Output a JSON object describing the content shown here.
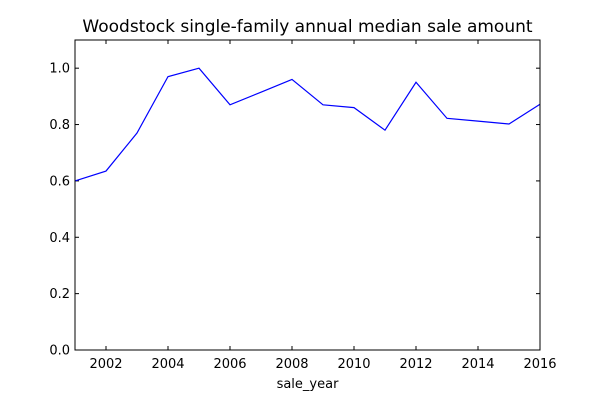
{
  "chart_data": {
    "type": "line",
    "title": "Woodstock single-family annual median sale amount",
    "xlabel": "sale_year",
    "ylabel": "",
    "xlim": [
      2001,
      2016
    ],
    "ylim": [
      0.0,
      1.1
    ],
    "grid": false,
    "legend": "none",
    "xticks": [
      "2002",
      "2004",
      "2006",
      "2008",
      "2010",
      "2012",
      "2014",
      "2016"
    ],
    "yticks": [
      "0.0",
      "0.2",
      "0.4",
      "0.6",
      "0.8",
      "1.0"
    ],
    "series": [
      {
        "color": "#0000ff",
        "x": [
          2001,
          2002,
          2003,
          2004,
          2005,
          2006,
          2007,
          2008,
          2009,
          2010,
          2011,
          2012,
          2013,
          2014,
          2015,
          2016
        ],
        "y": [
          0.6,
          0.635,
          0.77,
          0.97,
          1.0,
          0.87,
          0.915,
          0.96,
          0.87,
          0.86,
          0.78,
          0.95,
          0.822,
          0.812,
          0.802,
          0.872
        ]
      }
    ]
  }
}
